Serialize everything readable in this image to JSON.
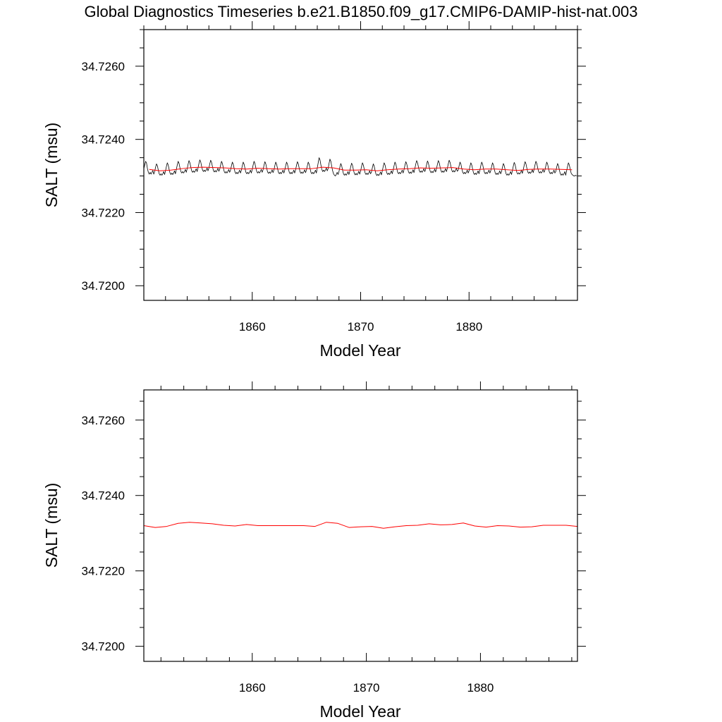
{
  "title": "Global Diagnostics Timeseries b.e21.B1850.f09_g17.CMIP6-DAMIP-hist-nat.003",
  "colors": {
    "monthly": "#000000",
    "annual": "#ff0000",
    "frame": "#000000"
  },
  "chart_data": [
    {
      "type": "line",
      "xlabel": "Model Year",
      "ylabel": "SALT (msu)",
      "xlim": [
        1850.0,
        1890.0
      ],
      "ylim": [
        34.7196,
        34.727
      ],
      "x_major_ticks": [
        1860,
        1870,
        1880
      ],
      "x_tick_labels": [
        "1860",
        "1870",
        "1880"
      ],
      "y_major_ticks": [
        34.72,
        34.722,
        34.724,
        34.726
      ],
      "y_tick_labels": [
        "34.7200",
        "34.7220",
        "34.7240",
        "34.7260"
      ],
      "grid": false,
      "series": [
        {
          "kind": "monthly",
          "color": "#000000",
          "x_start": 1850.0,
          "step": 0.0833333,
          "values": [
            34.7232,
            34.7233,
            34.7234,
            34.72335,
            34.7232,
            34.7231,
            34.72305,
            34.7231,
            34.72305,
            34.7231,
            34.72315,
            34.72305,
            34.72312,
            34.72324,
            34.72333,
            34.72328,
            34.72316,
            34.72306,
            34.72302,
            34.72306,
            34.72302,
            34.72306,
            34.72312,
            34.72304,
            34.72314,
            34.72326,
            34.72336,
            34.7233,
            34.72318,
            34.72308,
            34.72304,
            34.72308,
            34.72304,
            34.72308,
            34.72314,
            34.72306,
            34.72318,
            34.7233,
            34.7234,
            34.72334,
            34.72322,
            34.72312,
            34.72308,
            34.72312,
            34.72308,
            34.72312,
            34.72318,
            34.7231,
            34.7232,
            34.72332,
            34.72342,
            34.72336,
            34.72324,
            34.72314,
            34.7231,
            34.72314,
            34.7231,
            34.72314,
            34.7232,
            34.72312,
            34.72322,
            34.72334,
            34.72344,
            34.72338,
            34.72326,
            34.72316,
            34.72312,
            34.72316,
            34.72312,
            34.72316,
            34.72322,
            34.72314,
            34.72321,
            34.72333,
            34.72343,
            34.72337,
            34.72325,
            34.72315,
            34.72311,
            34.72315,
            34.72311,
            34.72315,
            34.72321,
            34.72313,
            34.72318,
            34.7233,
            34.7234,
            34.72334,
            34.72322,
            34.72312,
            34.72308,
            34.72312,
            34.72308,
            34.72312,
            34.72318,
            34.7231,
            34.72316,
            34.72328,
            34.72338,
            34.72332,
            34.7232,
            34.7231,
            34.72306,
            34.7231,
            34.72306,
            34.7231,
            34.72316,
            34.72308,
            34.72316,
            34.72328,
            34.72338,
            34.72332,
            34.7232,
            34.7231,
            34.72306,
            34.7231,
            34.72306,
            34.7231,
            34.72316,
            34.72308,
            34.72318,
            34.7233,
            34.7234,
            34.72334,
            34.72322,
            34.72312,
            34.72308,
            34.72312,
            34.72308,
            34.72312,
            34.72318,
            34.7231,
            34.72317,
            34.72329,
            34.72339,
            34.72333,
            34.72321,
            34.72311,
            34.72307,
            34.72311,
            34.72307,
            34.72311,
            34.72317,
            34.72309,
            34.72316,
            34.72328,
            34.72338,
            34.72332,
            34.7232,
            34.7231,
            34.72306,
            34.7231,
            34.72306,
            34.7231,
            34.72316,
            34.72308,
            34.72316,
            34.72328,
            34.72338,
            34.72332,
            34.7232,
            34.7231,
            34.72306,
            34.7231,
            34.72306,
            34.7231,
            34.72316,
            34.72308,
            34.72317,
            34.72329,
            34.72339,
            34.72333,
            34.72321,
            34.72311,
            34.72307,
            34.72311,
            34.72307,
            34.72311,
            34.72317,
            34.72309,
            34.72316,
            34.72328,
            34.72338,
            34.72332,
            34.7232,
            34.7231,
            34.72306,
            34.7231,
            34.72306,
            34.7231,
            34.72316,
            34.72308,
            34.72322,
            34.72336,
            34.7235,
            34.72344,
            34.7233,
            34.72318,
            34.72312,
            34.72316,
            34.72312,
            34.72316,
            34.72322,
            34.72314,
            34.7232,
            34.72334,
            34.72346,
            34.7234,
            34.72326,
            34.72314,
            34.72306,
            34.72302,
            34.723,
            34.72304,
            34.7231,
            34.72304,
            34.72312,
            34.72324,
            34.72334,
            34.72328,
            34.72316,
            34.72306,
            34.72302,
            34.72306,
            34.72302,
            34.72306,
            34.72312,
            34.72304,
            34.72313,
            34.72325,
            34.72335,
            34.72329,
            34.72317,
            34.72307,
            34.72303,
            34.72307,
            34.72303,
            34.72307,
            34.72313,
            34.72305,
            34.72314,
            34.72326,
            34.72336,
            34.7233,
            34.72318,
            34.72308,
            34.72304,
            34.72308,
            34.72304,
            34.72308,
            34.72314,
            34.72306,
            34.72311,
            34.72323,
            34.72333,
            34.72327,
            34.72315,
            34.72305,
            34.72301,
            34.72305,
            34.72301,
            34.72305,
            34.72311,
            34.72303,
            34.72314,
            34.72326,
            34.72336,
            34.7233,
            34.72318,
            34.72308,
            34.72304,
            34.72308,
            34.72304,
            34.72308,
            34.72314,
            34.72306,
            34.72316,
            34.72328,
            34.72338,
            34.72332,
            34.7232,
            34.7231,
            34.72306,
            34.7231,
            34.72306,
            34.7231,
            34.72316,
            34.72308,
            34.72317,
            34.72329,
            34.72339,
            34.72333,
            34.72321,
            34.72311,
            34.72307,
            34.72311,
            34.72307,
            34.72311,
            34.72317,
            34.72309,
            34.7232,
            34.72332,
            34.72342,
            34.72336,
            34.72324,
            34.72314,
            34.7231,
            34.72314,
            34.7231,
            34.72314,
            34.7232,
            34.72312,
            34.72319,
            34.72331,
            34.72341,
            34.72335,
            34.72323,
            34.72313,
            34.72309,
            34.72313,
            34.72309,
            34.72313,
            34.72319,
            34.72311,
            34.7232,
            34.72332,
            34.72342,
            34.72336,
            34.72324,
            34.72314,
            34.7231,
            34.72314,
            34.7231,
            34.72314,
            34.7232,
            34.72312,
            34.72321,
            34.72333,
            34.72343,
            34.72337,
            34.72325,
            34.72315,
            34.72311,
            34.72315,
            34.72311,
            34.72315,
            34.72321,
            34.72313,
            34.72316,
            34.72328,
            34.72338,
            34.72332,
            34.7232,
            34.7231,
            34.72306,
            34.7231,
            34.72306,
            34.7231,
            34.72316,
            34.72308,
            34.72314,
            34.72326,
            34.72336,
            34.7233,
            34.72318,
            34.72308,
            34.72304,
            34.72308,
            34.72304,
            34.72308,
            34.72314,
            34.72306,
            34.72316,
            34.72328,
            34.72338,
            34.72332,
            34.7232,
            34.7231,
            34.72306,
            34.7231,
            34.72306,
            34.7231,
            34.72316,
            34.72308,
            34.72314,
            34.72326,
            34.72336,
            34.7233,
            34.72318,
            34.72308,
            34.72304,
            34.72308,
            34.72304,
            34.72308,
            34.72314,
            34.72306,
            34.72312,
            34.72324,
            34.72334,
            34.72328,
            34.72316,
            34.72306,
            34.72302,
            34.72306,
            34.72302,
            34.72306,
            34.72312,
            34.72304,
            34.72315,
            34.72327,
            34.72337,
            34.72331,
            34.72319,
            34.72309,
            34.72305,
            34.72309,
            34.72305,
            34.72309,
            34.72315,
            34.72307,
            34.72317,
            34.72329,
            34.72339,
            34.72333,
            34.72321,
            34.72311,
            34.72307,
            34.72311,
            34.72307,
            34.72311,
            34.72317,
            34.72309,
            34.72318,
            34.7233,
            34.7234,
            34.72334,
            34.72322,
            34.72312,
            34.72308,
            34.72312,
            34.72308,
            34.72312,
            34.72318,
            34.7231,
            34.72316,
            34.72328,
            34.72338,
            34.72332,
            34.7232,
            34.7231,
            34.72306,
            34.7231,
            34.72306,
            34.7231,
            34.72316,
            34.72308,
            34.72312,
            34.72324,
            34.72334,
            34.72328,
            34.72316,
            34.72306,
            34.72302,
            34.72306,
            34.72302,
            34.72306,
            34.72312,
            34.72302,
            34.72314,
            34.72326,
            34.72336,
            34.7233,
            34.72318,
            34.72308,
            34.72304,
            34.72302,
            34.723,
            34.723,
            34.72302,
            34.723
          ]
        },
        {
          "kind": "annual",
          "color": "#ff0000",
          "x": [
            1850.5,
            1851.5,
            1852.5,
            1853.5,
            1854.5,
            1855.5,
            1856.5,
            1857.5,
            1858.5,
            1859.5,
            1860.5,
            1861.5,
            1862.5,
            1863.5,
            1864.5,
            1865.5,
            1866.5,
            1867.5,
            1868.5,
            1869.5,
            1870.5,
            1871.5,
            1872.5,
            1873.5,
            1874.5,
            1875.5,
            1876.5,
            1877.5,
            1878.5,
            1879.5,
            1880.5,
            1881.5,
            1882.5,
            1883.5,
            1884.5,
            1885.5,
            1886.5,
            1887.5,
            1888.5,
            1889.5
          ],
          "values": [
            34.72318,
            34.72314,
            34.72316,
            34.7232,
            34.72323,
            34.72324,
            34.72323,
            34.72322,
            34.7232,
            34.72319,
            34.72321,
            34.7232,
            34.72319,
            34.7232,
            34.7232,
            34.7232,
            34.72324,
            34.72322,
            34.72316,
            34.72316,
            34.72317,
            34.72314,
            34.72317,
            34.72319,
            34.7232,
            34.72322,
            34.72321,
            34.72322,
            34.72323,
            34.72319,
            34.72317,
            34.72319,
            34.72319,
            34.72317,
            34.72315,
            34.72318,
            34.72319,
            34.72319,
            34.72318,
            34.72317
          ]
        }
      ]
    },
    {
      "type": "line",
      "xlabel": "Model Year",
      "ylabel": "SALT (msu)",
      "xlim": [
        1850.5,
        1888.5
      ],
      "ylim": [
        34.7196,
        34.7268
      ],
      "x_major_ticks": [
        1860,
        1870,
        1880
      ],
      "x_tick_labels": [
        "1860",
        "1870",
        "1880"
      ],
      "y_major_ticks": [
        34.72,
        34.722,
        34.724,
        34.726
      ],
      "y_tick_labels": [
        "34.7200",
        "34.7220",
        "34.7240",
        "34.7260"
      ],
      "grid": false,
      "series": [
        {
          "kind": "annual",
          "color": "#ff0000",
          "x": [
            1850.5,
            1851.5,
            1852.5,
            1853.5,
            1854.5,
            1855.5,
            1856.5,
            1857.5,
            1858.5,
            1859.5,
            1860.5,
            1861.5,
            1862.5,
            1863.5,
            1864.5,
            1865.5,
            1866.5,
            1867.5,
            1868.5,
            1869.5,
            1870.5,
            1871.5,
            1872.5,
            1873.5,
            1874.5,
            1875.5,
            1876.5,
            1877.5,
            1878.5,
            1879.5,
            1880.5,
            1881.5,
            1882.5,
            1883.5,
            1884.5,
            1885.5,
            1886.5,
            1887.5,
            1888.5
          ],
          "values": [
            34.7232,
            34.72315,
            34.72318,
            34.72326,
            34.72329,
            34.72327,
            34.72325,
            34.72321,
            34.72319,
            34.72323,
            34.7232,
            34.7232,
            34.7232,
            34.7232,
            34.7232,
            34.72318,
            34.72329,
            34.72326,
            34.72315,
            34.72317,
            34.72318,
            34.72313,
            34.72317,
            34.7232,
            34.72321,
            34.72325,
            34.72322,
            34.72323,
            34.72327,
            34.72319,
            34.72316,
            34.7232,
            34.72319,
            34.72316,
            34.72317,
            34.72321,
            34.72321,
            34.72321,
            34.72318
          ]
        }
      ]
    }
  ]
}
